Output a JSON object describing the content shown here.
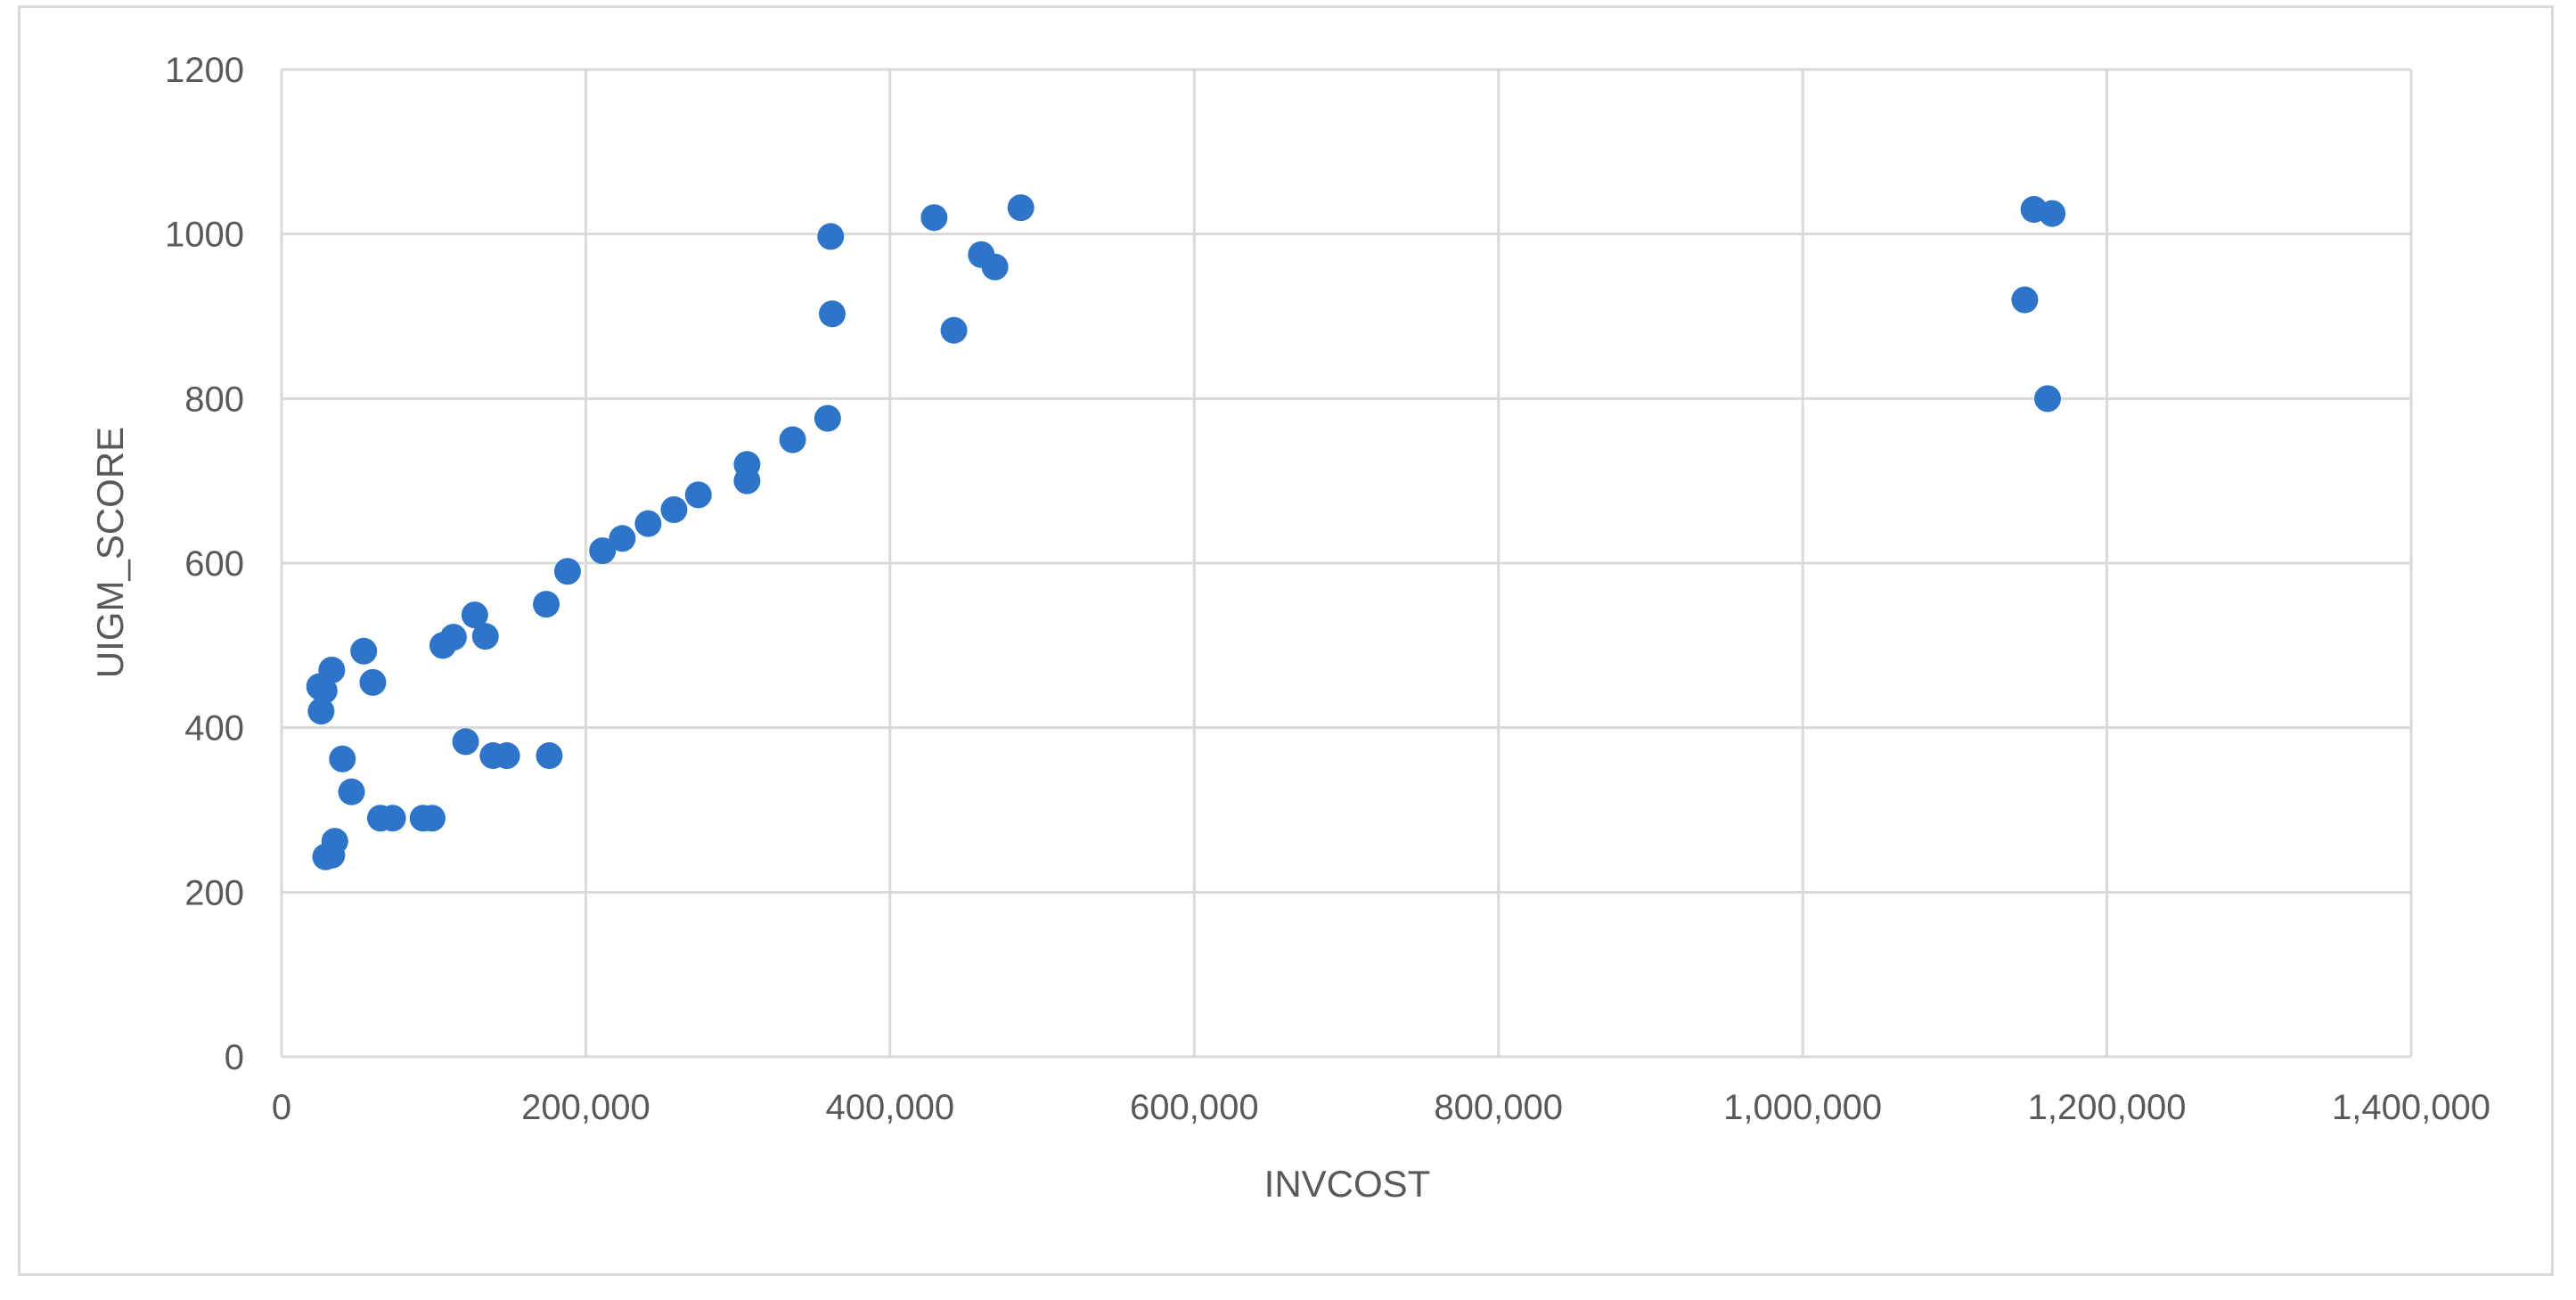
{
  "chart_data": {
    "type": "scatter",
    "title": "",
    "xlabel": "INVCOST",
    "ylabel": "UIGM_SCORE",
    "xlim": [
      0,
      1400000
    ],
    "ylim": [
      0,
      1200
    ],
    "x_ticks": [
      0,
      200000,
      400000,
      600000,
      800000,
      1000000,
      1200000,
      1400000
    ],
    "x_tick_labels": [
      "0",
      "200,000",
      "400,000",
      "600,000",
      "800,000",
      "1,000,000",
      "1,200,000",
      "1,400,000"
    ],
    "y_ticks": [
      0,
      200,
      400,
      600,
      800,
      1000,
      1200
    ],
    "y_tick_labels": [
      "0",
      "200",
      "400",
      "600",
      "800",
      "1000",
      "1200"
    ],
    "grid": true,
    "legend": "none",
    "marker_color": "#2e75c9",
    "grid_color": "#d9d9d9",
    "series": [
      {
        "points": [
          [
            25000,
            450
          ],
          [
            26000,
            420
          ],
          [
            28000,
            445
          ],
          [
            33000,
            470
          ],
          [
            54000,
            493
          ],
          [
            60000,
            455
          ],
          [
            40000,
            362
          ],
          [
            46000,
            322
          ],
          [
            35000,
            262
          ],
          [
            29000,
            243
          ],
          [
            33000,
            245
          ],
          [
            65000,
            290
          ],
          [
            73000,
            290
          ],
          [
            93000,
            290
          ],
          [
            99000,
            290
          ],
          [
            106000,
            500
          ],
          [
            113000,
            510
          ],
          [
            127000,
            537
          ],
          [
            134000,
            511
          ],
          [
            121000,
            383
          ],
          [
            139000,
            366
          ],
          [
            148000,
            366
          ],
          [
            176000,
            366
          ],
          [
            174000,
            550
          ],
          [
            188000,
            590
          ],
          [
            211000,
            615
          ],
          [
            224000,
            630
          ],
          [
            241000,
            648
          ],
          [
            258000,
            665
          ],
          [
            274000,
            683
          ],
          [
            306000,
            720
          ],
          [
            306000,
            700
          ],
          [
            336000,
            750
          ],
          [
            359000,
            776
          ],
          [
            361000,
            997
          ],
          [
            362000,
            903
          ],
          [
            429000,
            1020
          ],
          [
            442000,
            883
          ],
          [
            460000,
            975
          ],
          [
            469000,
            960
          ],
          [
            486000,
            1032
          ],
          [
            1146000,
            920
          ],
          [
            1152000,
            1030
          ],
          [
            1161000,
            800
          ],
          [
            1164000,
            1025
          ]
        ]
      }
    ]
  }
}
